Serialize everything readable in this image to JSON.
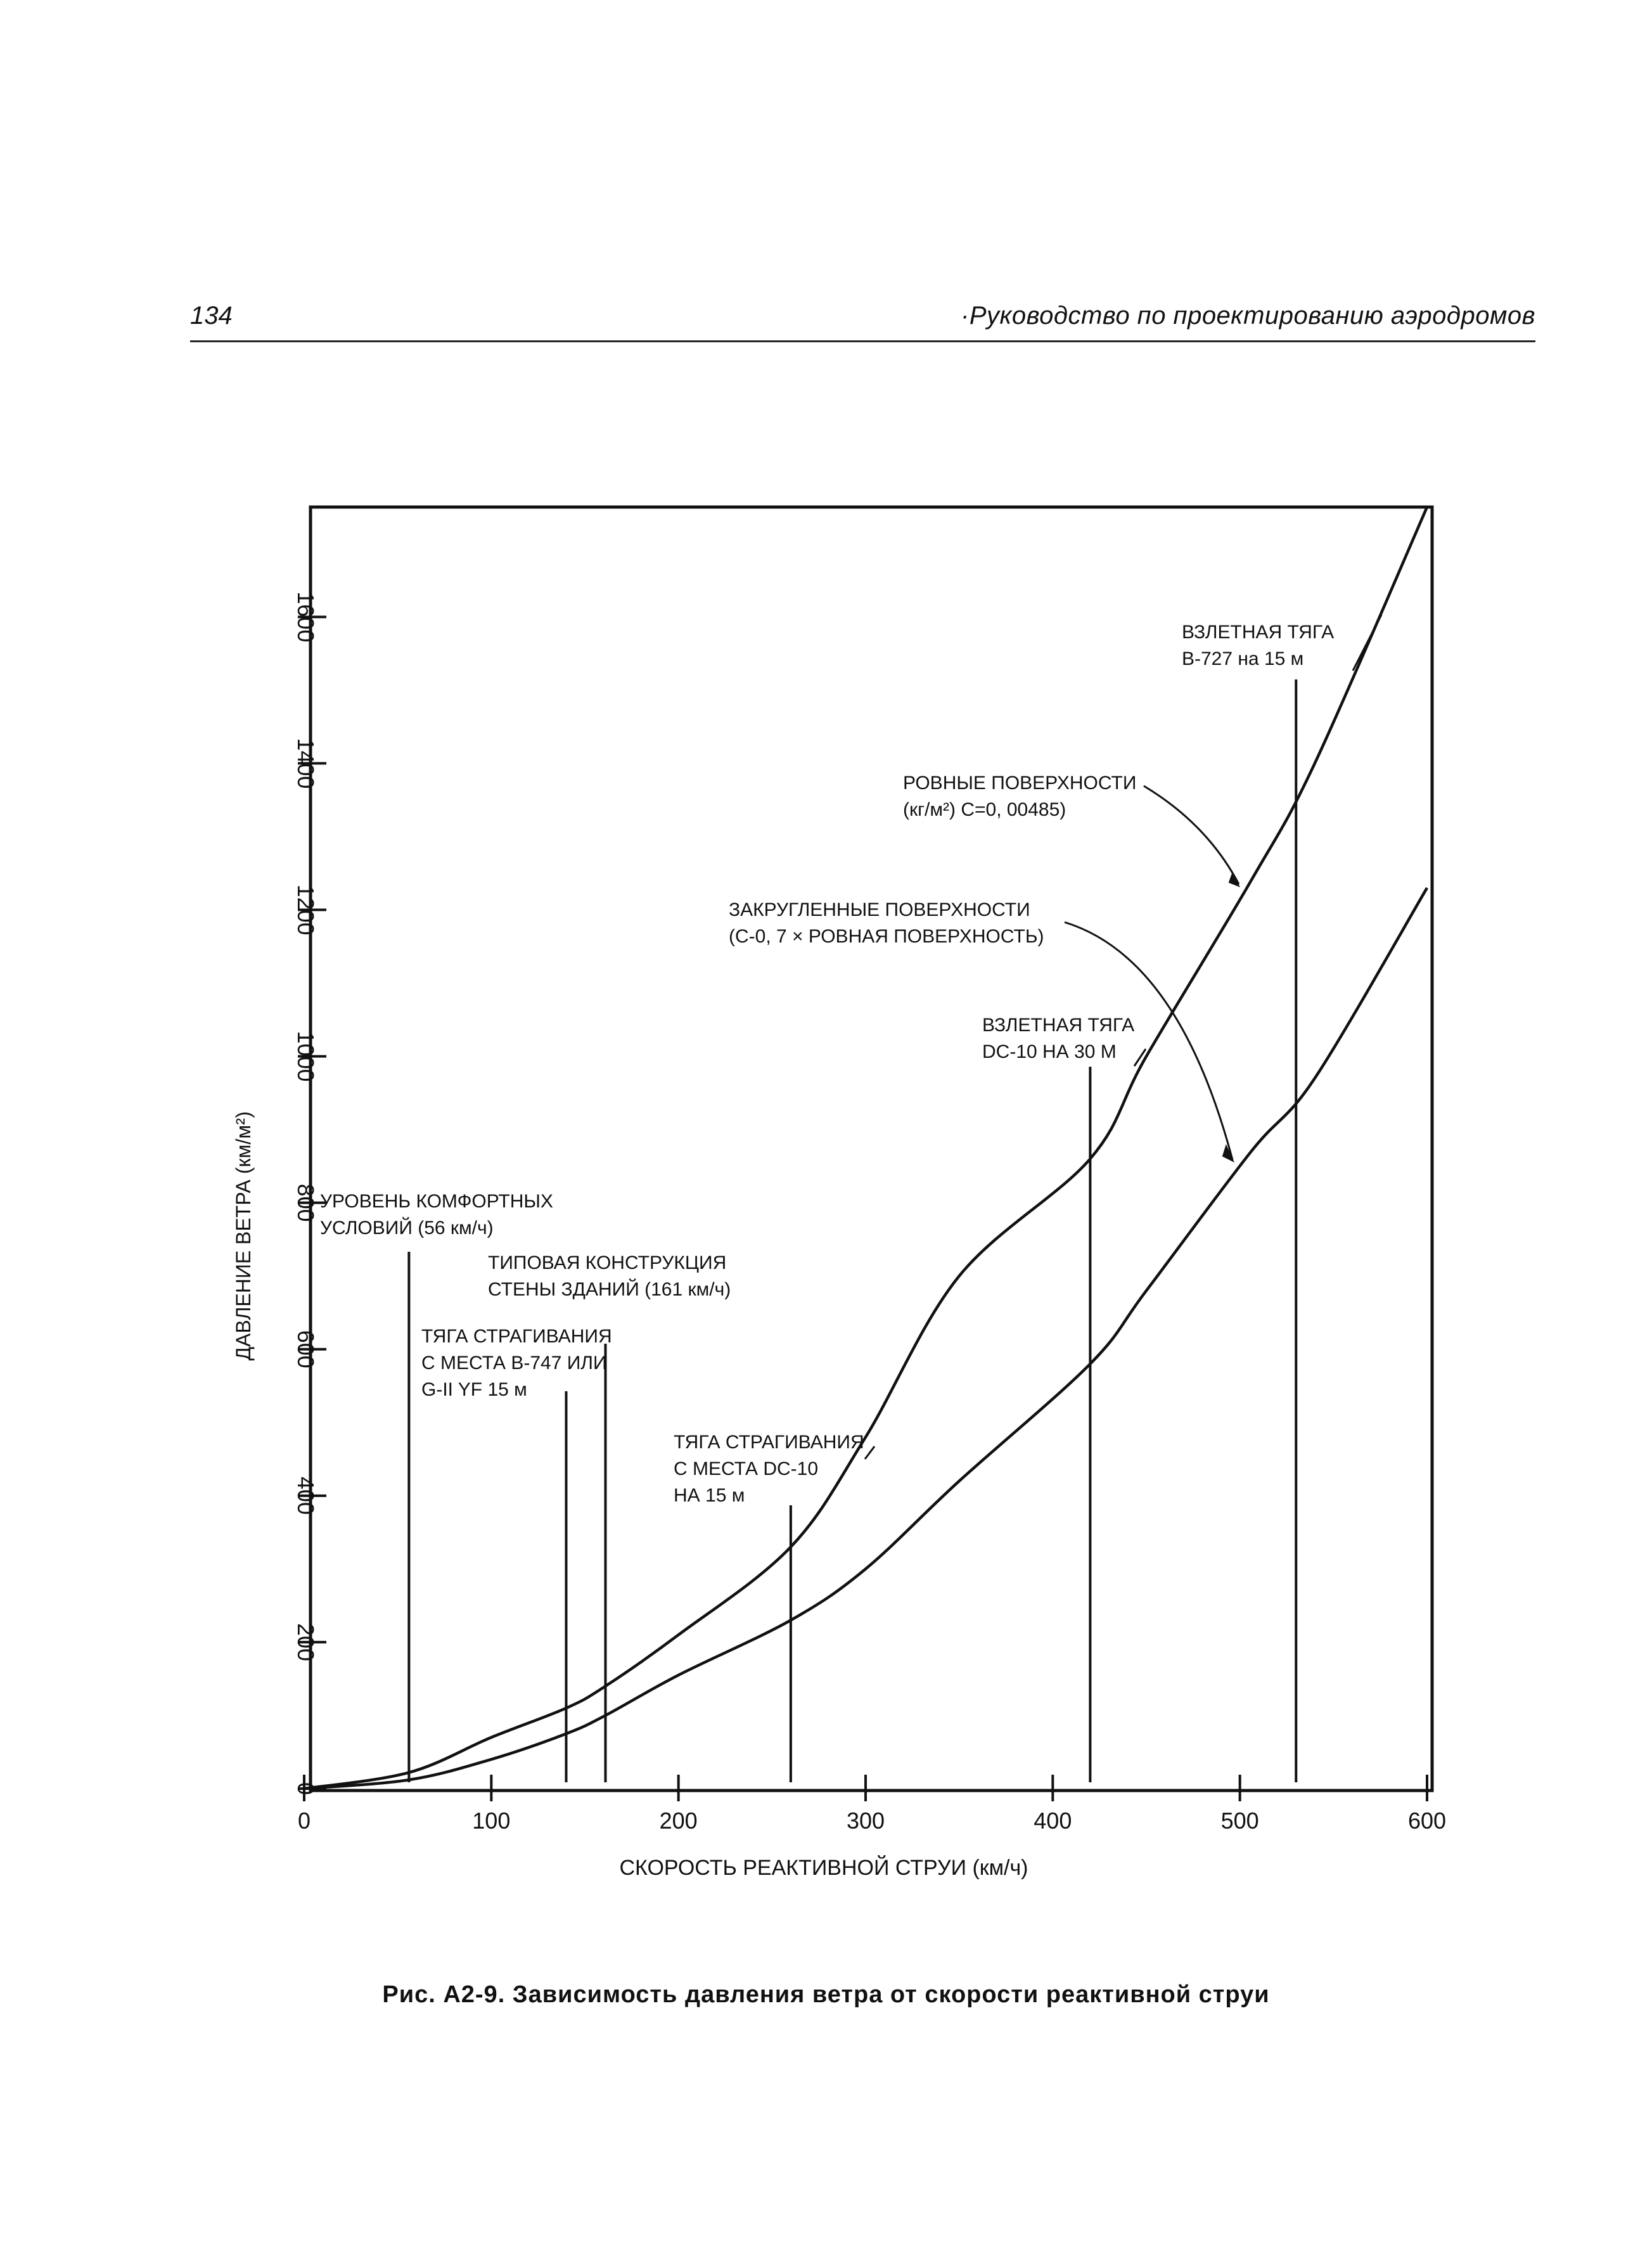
{
  "header": {
    "page_number": "134",
    "running_title": "·Руководство по проектированию аэродромов"
  },
  "caption": "Рис. А2-9. Зависимость давления ветра от скорости реактивной струи",
  "chart_data": {
    "type": "line",
    "title": "",
    "xlabel": "СКОРОСТЬ РЕАКТИВНОЙ СТРУИ (км/ч)",
    "ylabel": "ДАВЛЕНИЕ ВЕТРА (км/м²)",
    "xlim": [
      0,
      600
    ],
    "ylim": [
      0,
      1750
    ],
    "x_ticks": [
      "0",
      "100",
      "200",
      "300",
      "400",
      "500",
      "600"
    ],
    "y_ticks": [
      "0",
      "200",
      "400",
      "600",
      "800",
      "1000",
      "1200",
      "1400",
      "1600"
    ],
    "series": [
      {
        "x": [
          0,
          56,
          100,
          140,
          161,
          200,
          260,
          300,
          350,
          420,
          450,
          506,
          540,
          600
        ],
        "y": [
          0,
          22,
          70,
          110,
          140,
          210,
          330,
          480,
          700,
          860,
          1000,
          1240,
          1400,
          1750
        ]
      },
      {
        "x": [
          0,
          56,
          100,
          140,
          161,
          200,
          260,
          300,
          350,
          420,
          450,
          506,
          540,
          600
        ],
        "y": [
          0,
          12,
          40,
          75,
          100,
          155,
          230,
          300,
          420,
          580,
          680,
          870,
          970,
          1230
        ]
      }
    ],
    "annotations": [
      {
        "text": [
          "УРОВЕНЬ КОМФОРТНЫХ",
          "УСЛОВИЙ (56 км/ч)"
        ],
        "x": 56
      },
      {
        "text": [
          "ТИПОВАЯ КОНСТРУКЦИЯ",
          "СТЕНЫ ЗДАНИЙ (161 км/ч)"
        ],
        "x": 161
      },
      {
        "text": [
          "ТЯГА СТРАГИВАНИЯ",
          "С МЕСТА В-747 ИЛИ",
          "G-II YF 15 м"
        ],
        "x": 140
      },
      {
        "text": [
          "ТЯГА СТРАГИВАНИЯ",
          "С МЕСТА DC-10",
          "НА 15 м"
        ],
        "x": 260
      },
      {
        "text": [
          "ВЗЛЕТНАЯ ТЯГА",
          "DC-10 НА 30 М"
        ],
        "x": 420
      },
      {
        "text": [
          "ВЗЛЕТНАЯ ТЯГА",
          "В-727 на 15 м"
        ],
        "x": 530
      },
      {
        "text": [
          "РОВНЫЕ ПОВЕРХНОСТИ",
          "(кг/м²) C=0, 00485)"
        ]
      },
      {
        "text": [
          "ЗАКРУГЛЕННЫЕ ПОВЕРХНОСТИ",
          "(С-0, 7 × РОВНАЯ ПОВЕРХНОСТЬ)"
        ]
      }
    ]
  }
}
